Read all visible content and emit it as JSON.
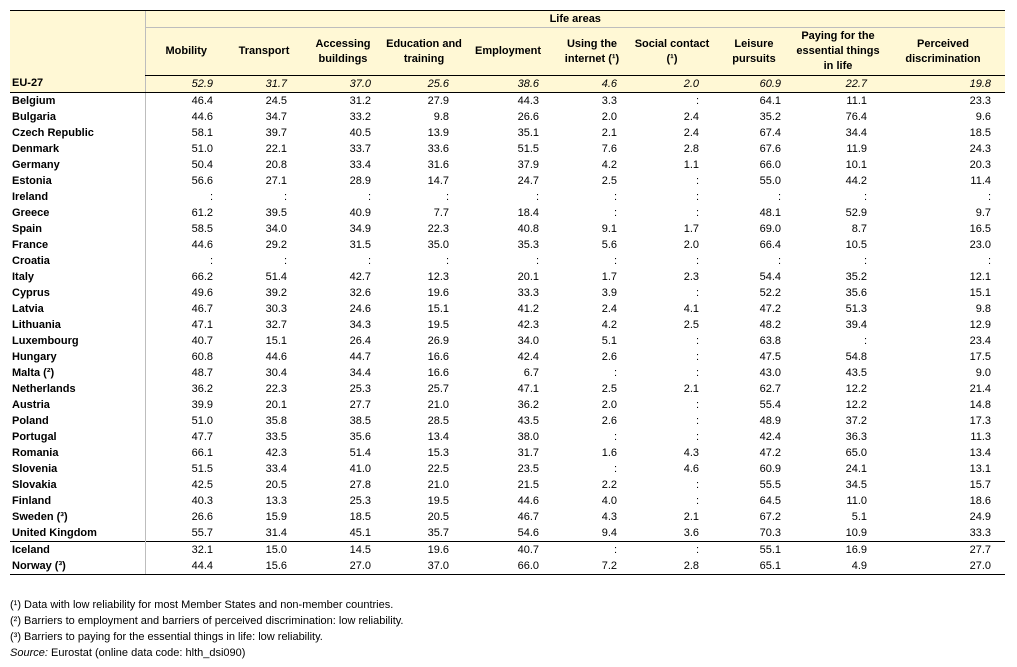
{
  "chart_data": {
    "type": "table",
    "header_group": "Life areas",
    "columns": [
      "Mobility",
      "Transport",
      "Accessing buildings",
      "Education and training",
      "Employment",
      "Using the internet (¹)",
      "Social contact (¹)",
      "Leisure pursuits",
      "Paying for the essential things in life",
      "Perceived discrimination"
    ],
    "eu_row": {
      "name": "EU-27",
      "values": [
        "52.9",
        "31.7",
        "37.0",
        "25.6",
        "38.6",
        "4.6",
        "2.0",
        "60.9",
        "22.7",
        "19.8"
      ]
    },
    "rows": [
      {
        "name": "Belgium",
        "values": [
          "46.4",
          "24.5",
          "31.2",
          "27.9",
          "44.3",
          "3.3",
          ":",
          "64.1",
          "11.1",
          "23.3"
        ]
      },
      {
        "name": "Bulgaria",
        "values": [
          "44.6",
          "34.7",
          "33.2",
          "9.8",
          "26.6",
          "2.0",
          "2.4",
          "35.2",
          "76.4",
          "9.6"
        ]
      },
      {
        "name": "Czech Republic",
        "values": [
          "58.1",
          "39.7",
          "40.5",
          "13.9",
          "35.1",
          "2.1",
          "2.4",
          "67.4",
          "34.4",
          "18.5"
        ]
      },
      {
        "name": "Denmark",
        "values": [
          "51.0",
          "22.1",
          "33.7",
          "33.6",
          "51.5",
          "7.6",
          "2.8",
          "67.6",
          "11.9",
          "24.3"
        ]
      },
      {
        "name": "Germany",
        "values": [
          "50.4",
          "20.8",
          "33.4",
          "31.6",
          "37.9",
          "4.2",
          "1.1",
          "66.0",
          "10.1",
          "20.3"
        ]
      },
      {
        "name": "Estonia",
        "values": [
          "56.6",
          "27.1",
          "28.9",
          "14.7",
          "24.7",
          "2.5",
          ":",
          "55.0",
          "44.2",
          "11.4"
        ]
      },
      {
        "name": "Ireland",
        "values": [
          ":",
          ":",
          ":",
          ":",
          ":",
          ":",
          ":",
          ":",
          ":",
          ":"
        ]
      },
      {
        "name": "Greece",
        "values": [
          "61.2",
          "39.5",
          "40.9",
          "7.7",
          "18.4",
          ":",
          ":",
          "48.1",
          "52.9",
          "9.7"
        ]
      },
      {
        "name": "Spain",
        "values": [
          "58.5",
          "34.0",
          "34.9",
          "22.3",
          "40.8",
          "9.1",
          "1.7",
          "69.0",
          "8.7",
          "16.5"
        ]
      },
      {
        "name": "France",
        "values": [
          "44.6",
          "29.2",
          "31.5",
          "35.0",
          "35.3",
          "5.6",
          "2.0",
          "66.4",
          "10.5",
          "23.0"
        ]
      },
      {
        "name": "Croatia",
        "values": [
          ":",
          ":",
          ":",
          ":",
          ":",
          ":",
          ":",
          ":",
          ":",
          ":"
        ]
      },
      {
        "name": "Italy",
        "values": [
          "66.2",
          "51.4",
          "42.7",
          "12.3",
          "20.1",
          "1.7",
          "2.3",
          "54.4",
          "35.2",
          "12.1"
        ]
      },
      {
        "name": "Cyprus",
        "values": [
          "49.6",
          "39.2",
          "32.6",
          "19.6",
          "33.3",
          "3.9",
          ":",
          "52.2",
          "35.6",
          "15.1"
        ]
      },
      {
        "name": "Latvia",
        "values": [
          "46.7",
          "30.3",
          "24.6",
          "15.1",
          "41.2",
          "2.4",
          "4.1",
          "47.2",
          "51.3",
          "9.8"
        ]
      },
      {
        "name": "Lithuania",
        "values": [
          "47.1",
          "32.7",
          "34.3",
          "19.5",
          "42.3",
          "4.2",
          "2.5",
          "48.2",
          "39.4",
          "12.9"
        ]
      },
      {
        "name": "Luxembourg",
        "values": [
          "40.7",
          "15.1",
          "26.4",
          "26.9",
          "34.0",
          "5.1",
          ":",
          "63.8",
          ":",
          "23.4"
        ]
      },
      {
        "name": "Hungary",
        "values": [
          "60.8",
          "44.6",
          "44.7",
          "16.6",
          "42.4",
          "2.6",
          ":",
          "47.5",
          "54.8",
          "17.5"
        ]
      },
      {
        "name": "Malta (²)",
        "values": [
          "48.7",
          "30.4",
          "34.4",
          "16.6",
          "6.7",
          ":",
          ":",
          "43.0",
          "43.5",
          "9.0"
        ]
      },
      {
        "name": "Netherlands",
        "values": [
          "36.2",
          "22.3",
          "25.3",
          "25.7",
          "47.1",
          "2.5",
          "2.1",
          "62.7",
          "12.2",
          "21.4"
        ]
      },
      {
        "name": "Austria",
        "values": [
          "39.9",
          "20.1",
          "27.7",
          "21.0",
          "36.2",
          "2.0",
          ":",
          "55.4",
          "12.2",
          "14.8"
        ]
      },
      {
        "name": "Poland",
        "values": [
          "51.0",
          "35.8",
          "38.5",
          "28.5",
          "43.5",
          "2.6",
          ":",
          "48.9",
          "37.2",
          "17.3"
        ]
      },
      {
        "name": "Portugal",
        "values": [
          "47.7",
          "33.5",
          "35.6",
          "13.4",
          "38.0",
          ":",
          ":",
          "42.4",
          "36.3",
          "11.3"
        ]
      },
      {
        "name": "Romania",
        "values": [
          "66.1",
          "42.3",
          "51.4",
          "15.3",
          "31.7",
          "1.6",
          "4.3",
          "47.2",
          "65.0",
          "13.4"
        ]
      },
      {
        "name": "Slovenia",
        "values": [
          "51.5",
          "33.4",
          "41.0",
          "22.5",
          "23.5",
          ":",
          "4.6",
          "60.9",
          "24.1",
          "13.1"
        ]
      },
      {
        "name": "Slovakia",
        "values": [
          "42.5",
          "20.5",
          "27.8",
          "21.0",
          "21.5",
          "2.2",
          ":",
          "55.5",
          "34.5",
          "15.7"
        ]
      },
      {
        "name": "Finland",
        "values": [
          "40.3",
          "13.3",
          "25.3",
          "19.5",
          "44.6",
          "4.0",
          ":",
          "64.5",
          "11.0",
          "18.6"
        ]
      },
      {
        "name": "Sweden (³)",
        "values": [
          "26.6",
          "15.9",
          "18.5",
          "20.5",
          "46.7",
          "4.3",
          "2.1",
          "67.2",
          "5.1",
          "24.9"
        ]
      },
      {
        "name": "United Kingdom",
        "values": [
          "55.7",
          "31.4",
          "45.1",
          "35.7",
          "54.6",
          "9.4",
          "3.6",
          "70.3",
          "10.9",
          "33.3"
        ]
      }
    ],
    "other_rows": [
      {
        "name": "Iceland",
        "values": [
          "32.1",
          "15.0",
          "14.5",
          "19.6",
          "40.7",
          ":",
          ":",
          "55.1",
          "16.9",
          "27.7"
        ]
      },
      {
        "name": "Norway (³)",
        "values": [
          "44.4",
          "15.6",
          "27.0",
          "37.0",
          "66.0",
          "7.2",
          "2.8",
          "65.1",
          "4.9",
          "27.0"
        ]
      }
    ],
    "notes": [
      "(¹) Data with low reliability for most Member States and non-member countries.",
      "(²) Barriers to employment and barriers of perceived discrimination: low reliability.",
      "(³) Barriers to paying for the essential things in life: low reliability."
    ],
    "source_label": "Source:",
    "source_text": "Eurostat (online data code: hlth_dsi090)"
  }
}
